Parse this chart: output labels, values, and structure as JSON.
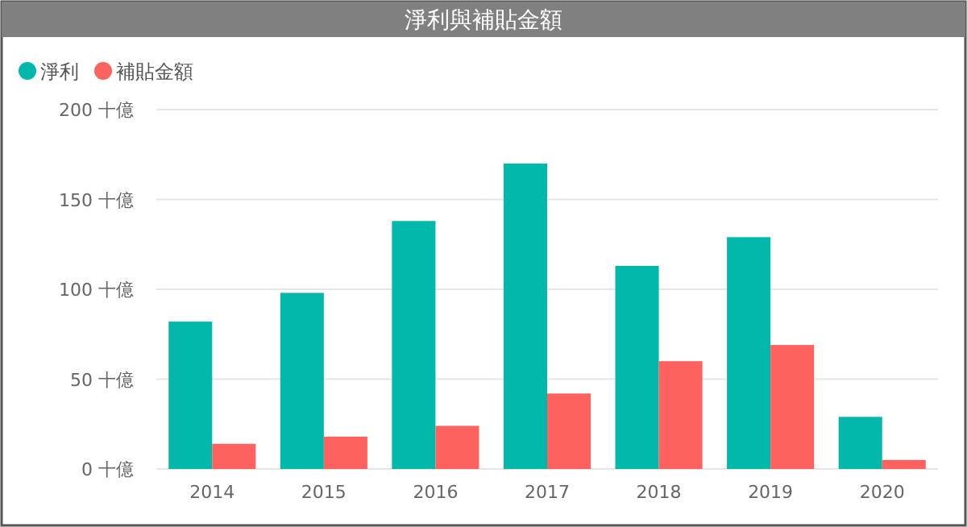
{
  "chart_data": {
    "type": "bar",
    "title": "淨利與補貼金額",
    "categories": [
      "2014",
      "2015",
      "2016",
      "2017",
      "2018",
      "2019",
      "2020"
    ],
    "series": [
      {
        "name": "淨利",
        "color": "#01b8aa",
        "values": [
          82,
          98,
          138,
          170,
          113,
          129,
          29
        ]
      },
      {
        "name": "補貼金額",
        "color": "#fd625e",
        "values": [
          14,
          18,
          24,
          42,
          60,
          69,
          5
        ]
      }
    ],
    "ylim": [
      0,
      200
    ],
    "yticks": [
      {
        "value": 0,
        "label": "0 十億"
      },
      {
        "value": 50,
        "label": "50 十億"
      },
      {
        "value": 100,
        "label": "100 十億"
      },
      {
        "value": 150,
        "label": "150 十億"
      },
      {
        "value": 200,
        "label": "200 十億"
      }
    ],
    "grid": "y",
    "legend": "top left"
  }
}
